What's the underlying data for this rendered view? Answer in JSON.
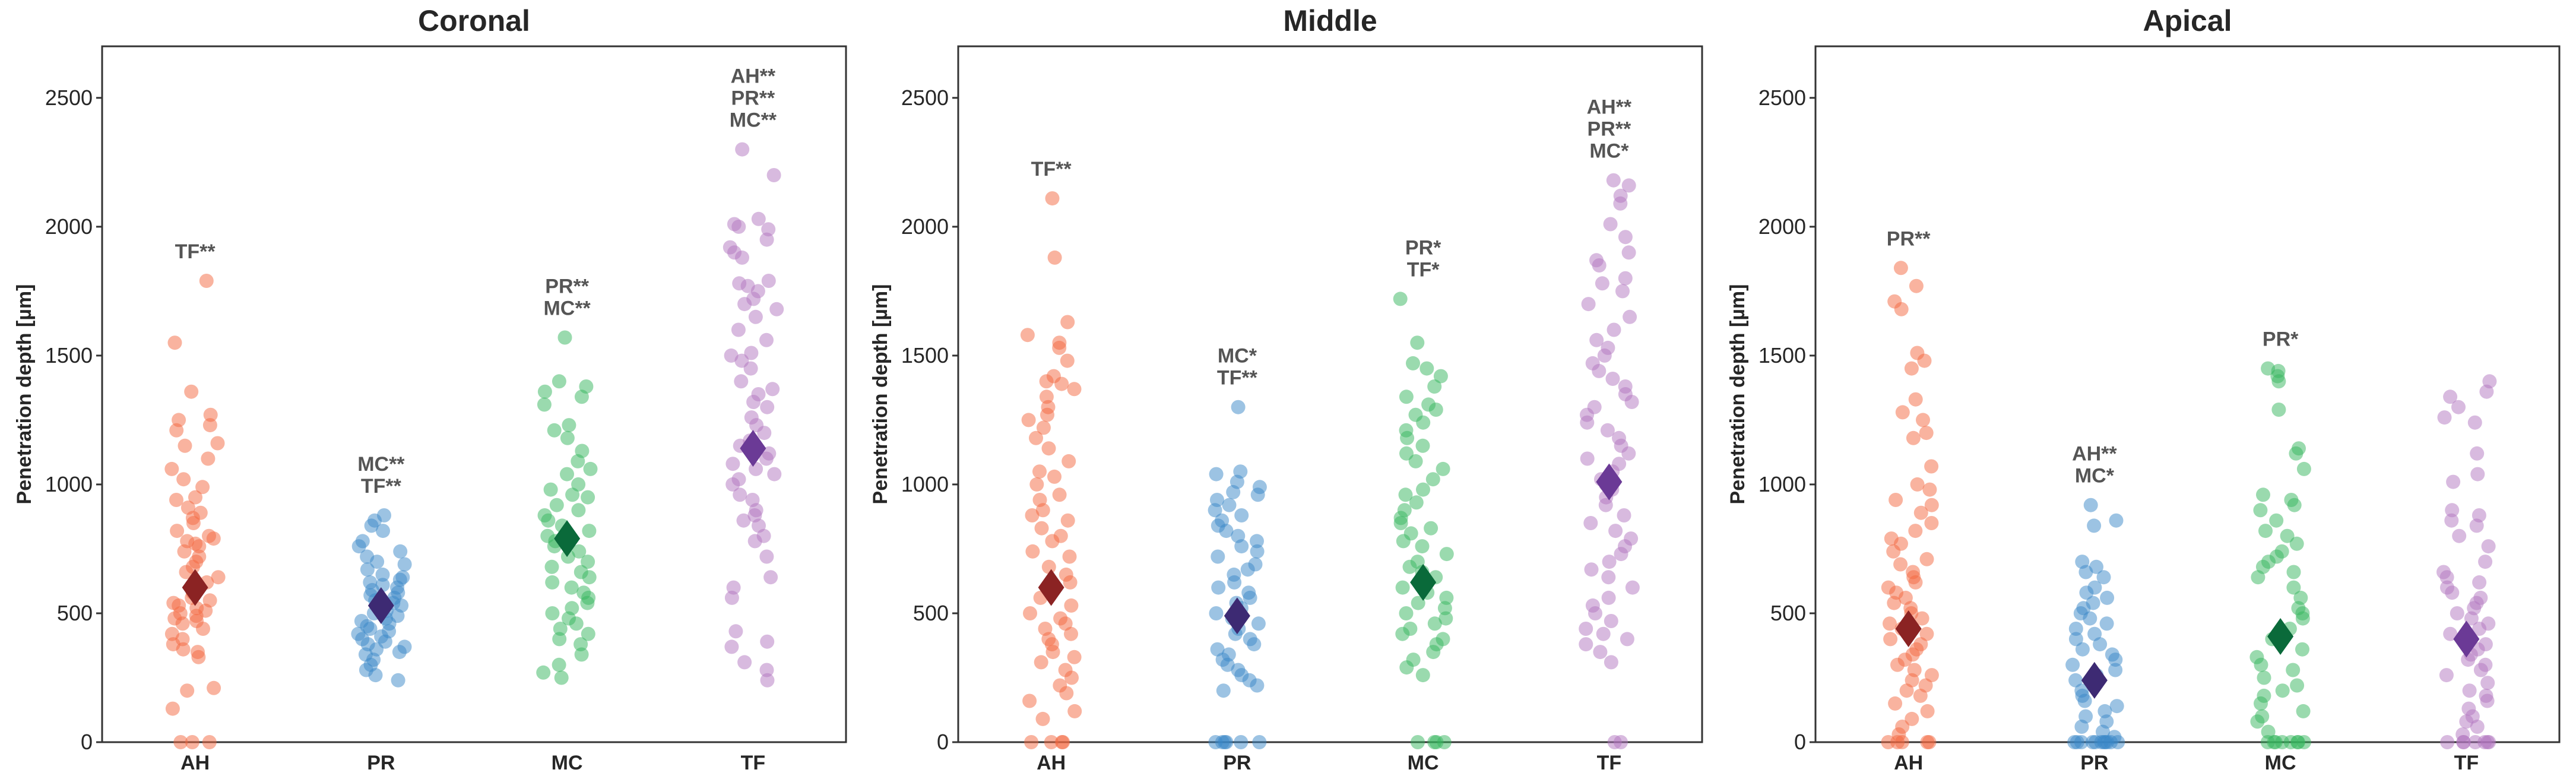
{
  "chart_data": {
    "type": "scatter",
    "ylabel": "Penetration depth [µm]",
    "ylim": [
      0,
      2700
    ],
    "yticks": [
      0,
      500,
      1000,
      1500,
      2000,
      2500
    ],
    "categories": [
      "AH",
      "PR",
      "MC",
      "TF"
    ],
    "colors": {
      "AH": {
        "point": "#f4673f",
        "mean": "#8b2323"
      },
      "PR": {
        "point": "#3a88c8",
        "mean": "#3d2a73"
      },
      "MC": {
        "point": "#35b65e",
        "mean": "#0a6a3a"
      },
      "TF": {
        "point": "#b276c0",
        "mean": "#6b3a96"
      }
    },
    "panels": [
      {
        "title": "Coronal",
        "series": [
          {
            "name": "AH",
            "mean": 600,
            "sig": [
              "TF**"
            ],
            "points": [
              1790,
              1550,
              1360,
              1270,
              1250,
              1230,
              1210,
              1160,
              1150,
              1100,
              1060,
              1020,
              990,
              950,
              940,
              910,
              890,
              870,
              850,
              820,
              800,
              790,
              780,
              770,
              760,
              740,
              720,
              700,
              680,
              660,
              640,
              620,
              600,
              580,
              560,
              550,
              540,
              530,
              520,
              510,
              500,
              490,
              480,
              470,
              460,
              440,
              420,
              400,
              380,
              360,
              350,
              330,
              210,
              200,
              130,
              0,
              0,
              0
            ]
          },
          {
            "name": "PR",
            "mean": 530,
            "sig": [
              "MC**",
              "TF**"
            ],
            "points": [
              880,
              860,
              840,
              820,
              780,
              760,
              740,
              720,
              700,
              690,
              670,
              650,
              640,
              630,
              620,
              610,
              600,
              590,
              580,
              570,
              560,
              550,
              540,
              530,
              520,
              510,
              500,
              490,
              480,
              470,
              460,
              450,
              440,
              430,
              420,
              410,
              400,
              390,
              380,
              370,
              360,
              350,
              340,
              320,
              300,
              280,
              260,
              240
            ]
          },
          {
            "name": "MC",
            "mean": 790,
            "sig": [
              "PR**",
              "MC**"
            ],
            "points": [
              1570,
              1400,
              1380,
              1360,
              1340,
              1310,
              1230,
              1210,
              1180,
              1130,
              1090,
              1060,
              1040,
              1000,
              980,
              960,
              950,
              920,
              900,
              880,
              860,
              840,
              820,
              800,
              780,
              760,
              740,
              720,
              700,
              680,
              660,
              640,
              620,
              600,
              580,
              560,
              540,
              520,
              500,
              480,
              460,
              440,
              420,
              400,
              380,
              340,
              300,
              270,
              250
            ]
          },
          {
            "name": "TF",
            "mean": 1140,
            "sig": [
              "AH**",
              "PR**",
              "MC**"
            ],
            "points": [
              2300,
              2200,
              2030,
              2010,
              2000,
              1990,
              1950,
              1920,
              1900,
              1880,
              1790,
              1780,
              1770,
              1750,
              1720,
              1700,
              1680,
              1650,
              1600,
              1560,
              1510,
              1500,
              1480,
              1450,
              1400,
              1370,
              1350,
              1320,
              1300,
              1260,
              1230,
              1200,
              1170,
              1150,
              1120,
              1100,
              1080,
              1060,
              1040,
              1020,
              1000,
              960,
              940,
              900,
              880,
              860,
              840,
              800,
              780,
              720,
              640,
              600,
              560,
              430,
              390,
              370,
              310,
              280,
              240
            ]
          }
        ]
      },
      {
        "title": "Middle",
        "series": [
          {
            "name": "AH",
            "mean": 600,
            "sig": [
              "TF**"
            ],
            "points": [
              2110,
              1880,
              1630,
              1580,
              1550,
              1530,
              1480,
              1420,
              1400,
              1390,
              1370,
              1340,
              1300,
              1270,
              1250,
              1220,
              1180,
              1140,
              1090,
              1050,
              1030,
              1000,
              960,
              940,
              900,
              880,
              860,
              830,
              800,
              780,
              740,
              720,
              680,
              650,
              620,
              600,
              560,
              530,
              500,
              480,
              460,
              440,
              420,
              400,
              380,
              350,
              330,
              310,
              280,
              250,
              220,
              190,
              160,
              120,
              90,
              0,
              0,
              0,
              0
            ]
          },
          {
            "name": "PR",
            "mean": 490,
            "sig": [
              "MC*",
              "TF**"
            ],
            "points": [
              1300,
              1050,
              1040,
              1010,
              990,
              970,
              960,
              940,
              920,
              900,
              880,
              860,
              840,
              820,
              800,
              780,
              760,
              740,
              720,
              690,
              670,
              650,
              620,
              600,
              580,
              560,
              540,
              520,
              500,
              480,
              460,
              440,
              420,
              400,
              380,
              360,
              340,
              320,
              300,
              280,
              260,
              240,
              220,
              200,
              0,
              0,
              0,
              0,
              0,
              0
            ]
          },
          {
            "name": "MC",
            "mean": 620,
            "sig": [
              "PR*",
              "TF*"
            ],
            "points": [
              1720,
              1550,
              1470,
              1450,
              1420,
              1380,
              1340,
              1310,
              1290,
              1270,
              1240,
              1210,
              1180,
              1150,
              1120,
              1090,
              1060,
              1020,
              980,
              960,
              930,
              900,
              870,
              850,
              830,
              810,
              780,
              760,
              730,
              700,
              680,
              660,
              640,
              620,
              600,
              580,
              560,
              540,
              520,
              500,
              480,
              460,
              440,
              420,
              400,
              380,
              350,
              320,
              290,
              260,
              0,
              0,
              0,
              0
            ]
          },
          {
            "name": "TF",
            "mean": 1010,
            "sig": [
              "AH**",
              "PR**",
              "MC*"
            ],
            "points": [
              2180,
              2160,
              2120,
              2090,
              2010,
              1960,
              1900,
              1870,
              1850,
              1800,
              1780,
              1750,
              1700,
              1650,
              1600,
              1560,
              1530,
              1500,
              1470,
              1440,
              1410,
              1380,
              1350,
              1320,
              1300,
              1270,
              1240,
              1210,
              1180,
              1150,
              1120,
              1100,
              1080,
              1050,
              1020,
              1000,
              980,
              950,
              920,
              880,
              850,
              820,
              790,
              760,
              730,
              700,
              670,
              640,
              600,
              560,
              530,
              500,
              470,
              440,
              420,
              400,
              380,
              350,
              310,
              0,
              0
            ]
          }
        ]
      },
      {
        "title": "Apical",
        "series": [
          {
            "name": "AH",
            "mean": 440,
            "sig": [
              "PR**"
            ],
            "points": [
              1840,
              1770,
              1710,
              1680,
              1510,
              1480,
              1450,
              1330,
              1280,
              1250,
              1200,
              1180,
              1070,
              1000,
              980,
              940,
              920,
              890,
              850,
              820,
              790,
              770,
              740,
              710,
              690,
              660,
              640,
              620,
              600,
              580,
              560,
              540,
              520,
              500,
              480,
              460,
              440,
              420,
              400,
              380,
              360,
              340,
              320,
              300,
              280,
              260,
              240,
              220,
              200,
              180,
              150,
              120,
              90,
              60,
              30,
              0,
              0,
              0,
              0,
              0
            ]
          },
          {
            "name": "PR",
            "mean": 240,
            "sig": [
              "AH**",
              "MC*"
            ],
            "points": [
              920,
              860,
              840,
              700,
              680,
              660,
              640,
              600,
              580,
              560,
              540,
              520,
              500,
              480,
              460,
              440,
              420,
              400,
              380,
              360,
              340,
              320,
              300,
              280,
              260,
              240,
              220,
              200,
              180,
              160,
              140,
              120,
              100,
              80,
              60,
              40,
              20,
              0,
              0,
              0,
              0,
              0,
              0,
              0,
              0,
              0,
              0,
              0
            ]
          },
          {
            "name": "MC",
            "mean": 410,
            "sig": [
              "PR*"
            ],
            "points": [
              1450,
              1440,
              1420,
              1400,
              1290,
              1140,
              1120,
              1060,
              960,
              940,
              920,
              900,
              860,
              820,
              800,
              770,
              740,
              720,
              700,
              680,
              660,
              640,
              600,
              560,
              520,
              500,
              480,
              440,
              400,
              360,
              330,
              300,
              280,
              250,
              220,
              200,
              180,
              150,
              120,
              100,
              80,
              40,
              0,
              0,
              0,
              0,
              0,
              0,
              0,
              0
            ]
          },
          {
            "name": "TF",
            "mean": 400,
            "sig": [],
            "points": [
              1400,
              1360,
              1340,
              1300,
              1260,
              1240,
              1120,
              1040,
              1010,
              900,
              880,
              860,
              840,
              800,
              760,
              700,
              660,
              640,
              620,
              600,
              580,
              560,
              540,
              520,
              500,
              480,
              460,
              440,
              420,
              400,
              380,
              360,
              340,
              320,
              300,
              280,
              260,
              230,
              200,
              180,
              160,
              130,
              100,
              80,
              60,
              30,
              0,
              0,
              0,
              0,
              0,
              0,
              0
            ]
          }
        ]
      }
    ]
  }
}
